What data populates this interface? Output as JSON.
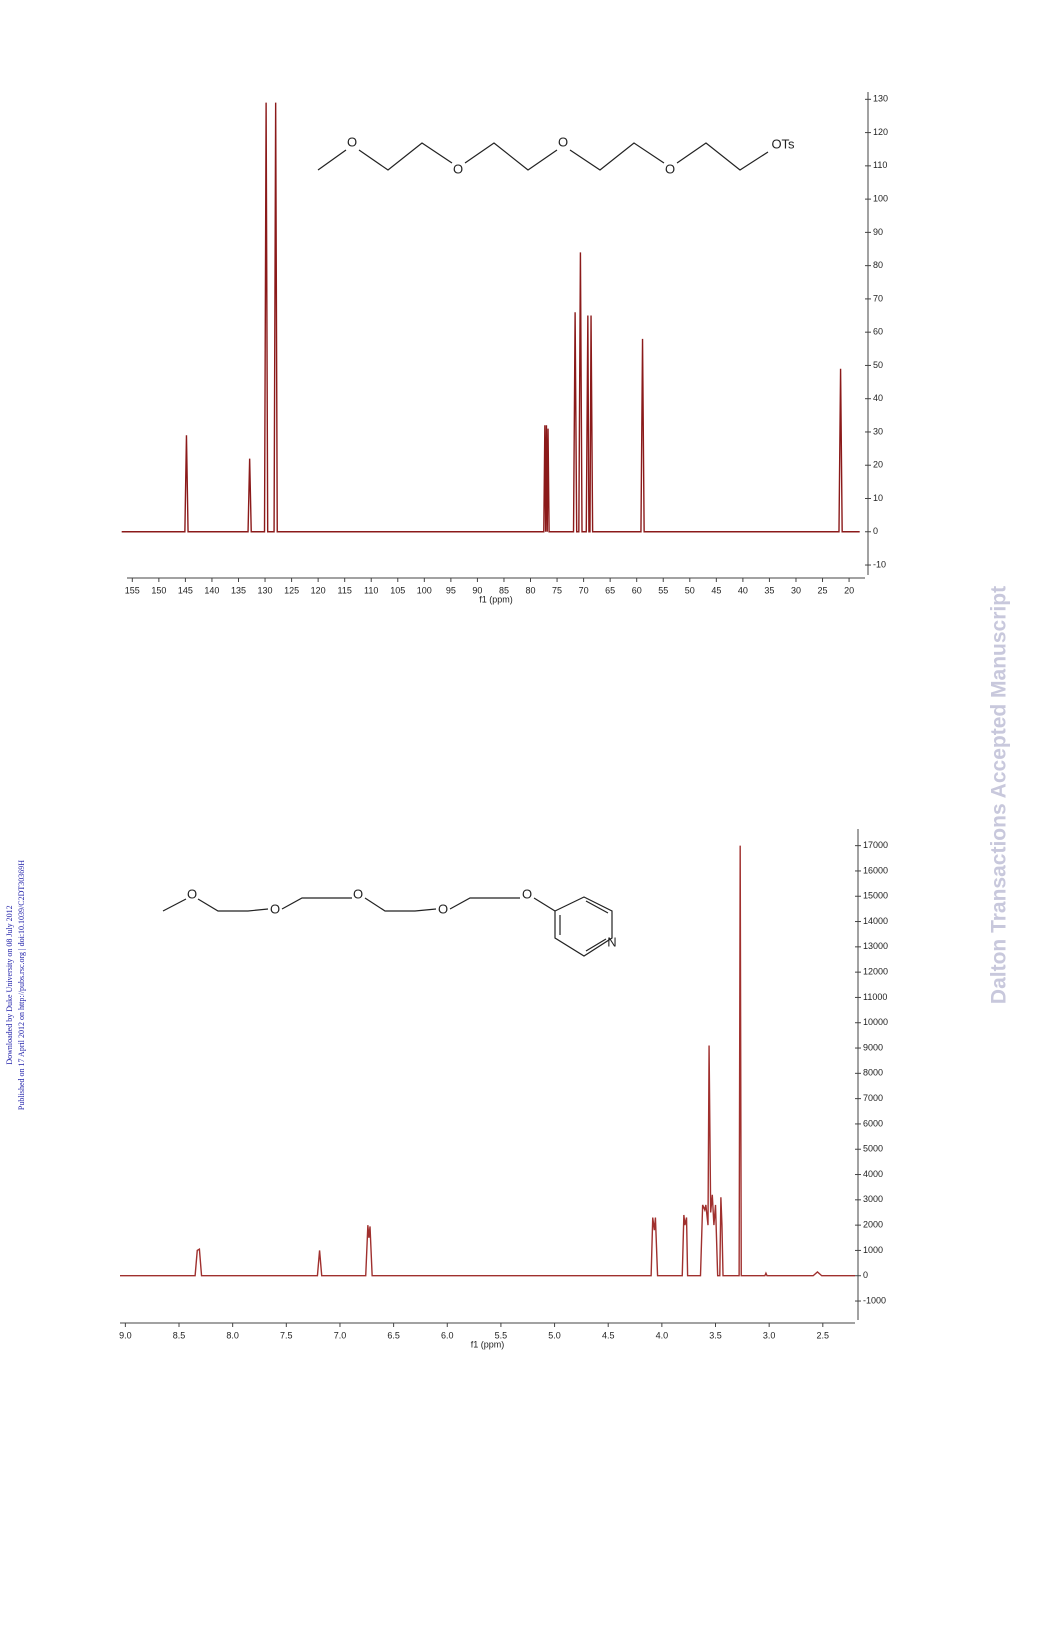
{
  "watermark": "Dalton Transactions Accepted Manuscript",
  "download_notice": "Downloaded by Duke University on 08 July 2012",
  "publish_notice": "Published on 17 April 2012 on http://pubs.rsc.org | doi:10.1039/C2DT30369H",
  "chart_data": [
    {
      "type": "line",
      "xlabel": "f1 (ppm)",
      "color": "#8b1a1a",
      "annotations": [
        "O",
        "O",
        "O",
        "O",
        "OTs"
      ],
      "xlim": [
        156,
        17
      ],
      "ylim": [
        -13,
        131
      ],
      "xticks": [
        155,
        150,
        145,
        140,
        135,
        130,
        125,
        120,
        115,
        110,
        105,
        100,
        95,
        90,
        85,
        80,
        75,
        70,
        65,
        60,
        55,
        50,
        45,
        40,
        35,
        30,
        25,
        20
      ],
      "yticks": [
        -10,
        0,
        10,
        20,
        30,
        40,
        50,
        60,
        70,
        80,
        90,
        100,
        110,
        120,
        130
      ],
      "x": [
        157,
        145.1,
        144.8,
        144.5,
        133.2,
        132.9,
        132.6,
        130.1,
        129.8,
        129.5,
        128.3,
        128.0,
        127.7,
        77.5,
        77.3,
        77.15,
        77.0,
        76.85,
        76.7,
        76.5,
        71.9,
        71.6,
        71.3,
        70.9,
        70.6,
        70.3,
        69.5,
        69.2,
        69.0,
        68.8,
        68.6,
        68.3,
        59.2,
        58.9,
        58.6,
        21.9,
        21.6,
        21.3,
        18
      ],
      "values": [
        0,
        0,
        29,
        0,
        0,
        22,
        0,
        0,
        129,
        0,
        0,
        129,
        0,
        0,
        32,
        0,
        32,
        0,
        31,
        0,
        0,
        66,
        0,
        0,
        84,
        0,
        0,
        65,
        0,
        0,
        65,
        0,
        0,
        58,
        0,
        0,
        49,
        0,
        0
      ]
    },
    {
      "type": "line",
      "xlabel": "f1 (ppm)",
      "color": "#a0302e",
      "annotations": [
        "O",
        "O",
        "O",
        "O",
        "O",
        "N"
      ],
      "xlim": [
        9.05,
        2.2
      ],
      "ylim": [
        -1750,
        17500
      ],
      "xticks": [
        {
          "value": 9,
          "label": "9.0"
        },
        8.5,
        {
          "value": 8,
          "label": "8.0"
        },
        7.5,
        {
          "value": 7,
          "label": "7.0"
        },
        6.5,
        {
          "value": 6,
          "label": "6.0"
        },
        5.5,
        {
          "value": 5,
          "label": "5.0"
        },
        4.5,
        {
          "value": 4,
          "label": "4.0"
        },
        3.5,
        {
          "value": 3,
          "label": "3.0"
        },
        2.5
      ],
      "yticks": [
        -1000,
        0,
        1000,
        2000,
        3000,
        4000,
        5000,
        6000,
        7000,
        8000,
        9000,
        10000,
        11000,
        12000,
        13000,
        14000,
        15000,
        16000,
        17000
      ],
      "x": [
        9.05,
        8.35,
        8.33,
        8.31,
        8.29,
        7.21,
        7.19,
        7.17,
        6.76,
        6.74,
        6.73,
        6.72,
        6.7,
        4.1,
        4.085,
        4.07,
        4.06,
        4.04,
        3.81,
        3.795,
        3.785,
        3.77,
        3.76,
        3.64,
        3.62,
        3.6,
        3.59,
        3.57,
        3.56,
        3.545,
        3.53,
        3.515,
        3.5,
        3.48,
        3.46,
        3.45,
        3.44,
        3.43,
        3.28,
        3.27,
        3.26,
        3.04,
        3.03,
        3.02,
        2.59,
        2.55,
        2.51,
        2.2
      ],
      "values": [
        0,
        0,
        1000,
        1050,
        0,
        0,
        1000,
        0,
        0,
        2000,
        1500,
        1950,
        0,
        0,
        2300,
        1800,
        2300,
        0,
        0,
        2400,
        2000,
        2300,
        0,
        0,
        2800,
        2600,
        2800,
        2000,
        9100,
        2500,
        3200,
        2000,
        2800,
        0,
        0,
        3100,
        2000,
        0,
        0,
        17000,
        0,
        0,
        100,
        0,
        0,
        150,
        0,
        0
      ]
    }
  ]
}
